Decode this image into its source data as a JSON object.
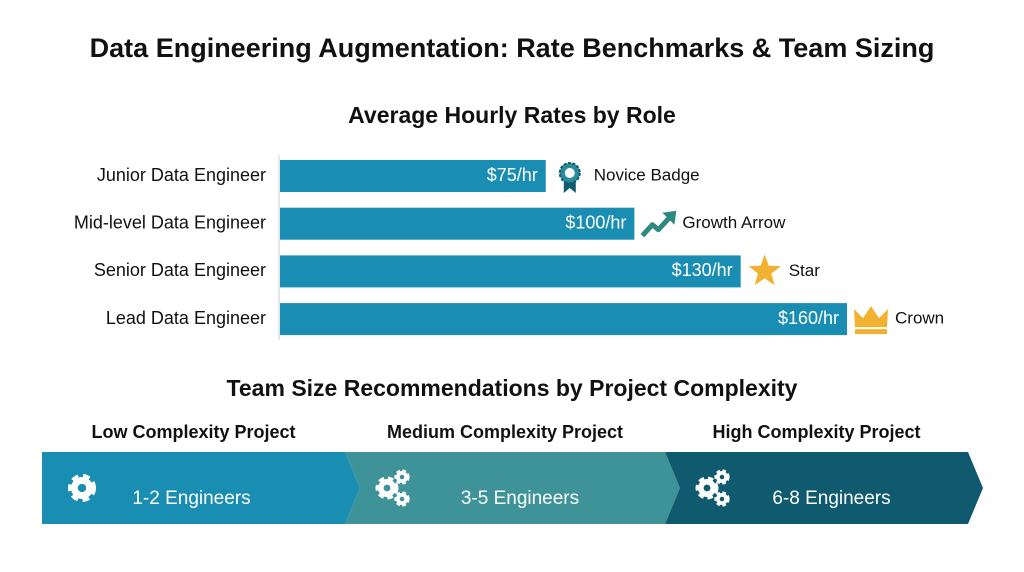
{
  "title": "Data Engineering Augmentation: Rate Benchmarks & Team Sizing",
  "chart_data": {
    "type": "bar",
    "orientation": "horizontal",
    "title": "Average Hourly Rates by Role",
    "categories": [
      "Junior Data Engineer",
      "Mid-level Data Engineer",
      "Senior Data Engineer",
      "Lead Data Engineer"
    ],
    "values": [
      75,
      100,
      130,
      160
    ],
    "value_labels": [
      "$75/hr",
      "$100/hr",
      "$130/hr",
      "$160/hr"
    ],
    "icon_labels": [
      "Novice Badge",
      "Growth Arrow",
      "Star",
      "Crown"
    ],
    "color": "#1a8db3"
  },
  "team_sizing": {
    "title": "Team Size Recommendations by Project Complexity",
    "tiers": [
      {
        "label": "Low Complexity Project",
        "team": "1-2 Engineers",
        "color": "#1a8db3"
      },
      {
        "label": "Medium Complexity Project",
        "team": "3-5 Engineers",
        "color": "#3e9399"
      },
      {
        "label": "High Complexity Project",
        "team": "6-8 Engineers",
        "color": "#0f5a6e"
      }
    ]
  }
}
